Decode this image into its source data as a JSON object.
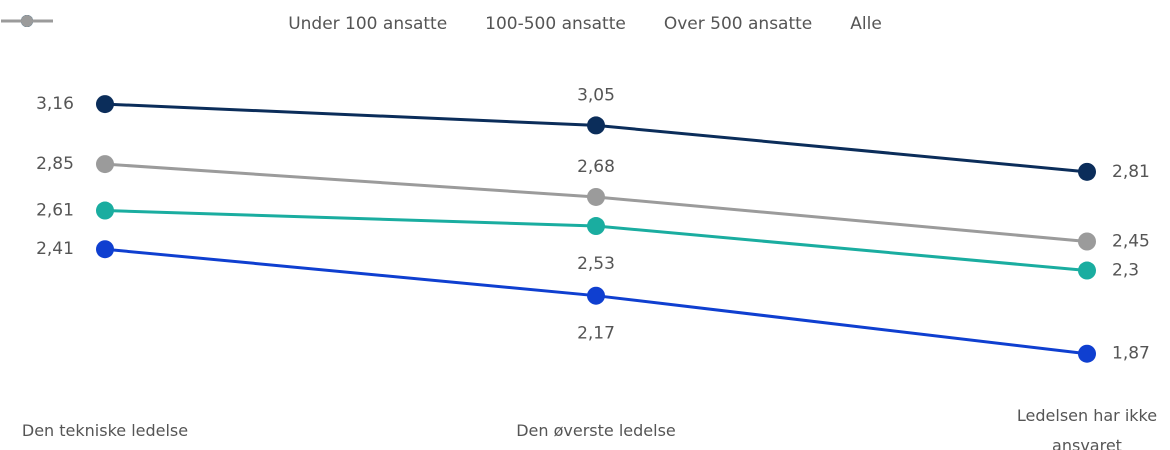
{
  "chart_data": {
    "type": "line",
    "categories": [
      "Den tekniske ledelse",
      "Den øverste ledelse",
      "Ledelsen har ikke ansvaret"
    ],
    "series": [
      {
        "name": "Under 100 ansatte",
        "color": "#0f3fd0",
        "values": [
          2.41,
          2.17,
          1.87
        ],
        "value_labels": [
          "2,41",
          "2,17",
          "1,87"
        ]
      },
      {
        "name": "100-500 ansatte",
        "color": "#1aada0",
        "values": [
          2.61,
          2.53,
          2.3
        ],
        "value_labels": [
          "2,61",
          "2,53",
          "2,3"
        ]
      },
      {
        "name": "Over 500 ansatte",
        "color": "#0b2d5a",
        "values": [
          3.16,
          3.05,
          2.81
        ],
        "value_labels": [
          "3,16",
          "3,05",
          "2,81"
        ]
      },
      {
        "name": "Alle",
        "color": "#9b9b9b",
        "values": [
          2.85,
          2.68,
          2.45
        ],
        "value_labels": [
          "2,85",
          "2,68",
          "2,45"
        ]
      }
    ],
    "ylim": [
      1.6,
      3.3
    ],
    "legend": "top"
  }
}
